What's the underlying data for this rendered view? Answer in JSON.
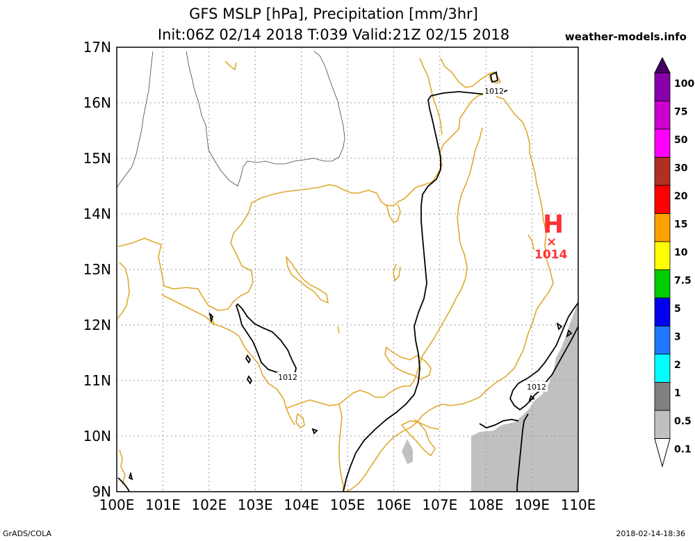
{
  "header": {
    "title_line1": "GFS MSLP [hPa], Precipitation [mm/3hr]",
    "title_line2": "Init:06Z 02/14 2018 T:039 Valid:21Z 02/15 2018",
    "site": "weather-models.info"
  },
  "footer": {
    "left": "GrADS/COLA",
    "right": "2018-02-14-18:36"
  },
  "axes": {
    "lon_labels": [
      "100E",
      "101E",
      "102E",
      "103E",
      "104E",
      "105E",
      "106E",
      "107E",
      "108E",
      "109E",
      "110E"
    ],
    "lat_labels": [
      "9N",
      "10N",
      "11N",
      "12N",
      "13N",
      "14N",
      "15N",
      "16N",
      "17N"
    ],
    "lon_range": [
      100,
      110
    ],
    "lat_range": [
      9,
      17
    ],
    "grid": true
  },
  "pressure_labels": {
    "contour_a": "1012",
    "contour_b": "1012",
    "contour_c": "1012"
  },
  "high_center": {
    "symbol": "H",
    "value": "1014",
    "lon": 109.4,
    "lat": 13.55
  },
  "colors": {
    "coast": "#e0a830",
    "high": "#ff3333",
    "land_shade": "#c0c0c0"
  },
  "colorbar": {
    "levels": [
      "100",
      "75",
      "50",
      "30",
      "20",
      "15",
      "10",
      "7.5",
      "5",
      "3",
      "2",
      "1",
      "0.5",
      "0.1"
    ],
    "colors": [
      "#8800aa",
      "#cc00cc",
      "#ff00ff",
      "#b03020",
      "#ff0000",
      "#ffa000",
      "#ffff00",
      "#00cc00",
      "#0000ee",
      "#1e78ff",
      "#00ffff",
      "#808080",
      "#c0c0c0",
      "#ffffff"
    ]
  }
}
